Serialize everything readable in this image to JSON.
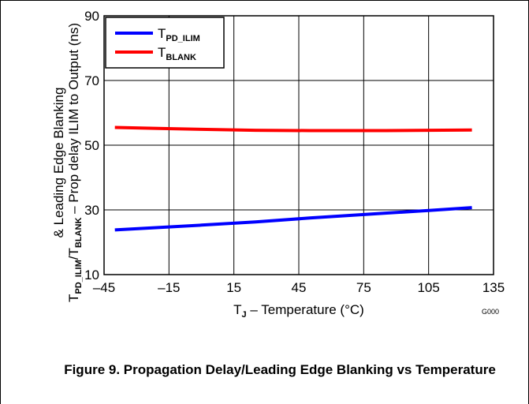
{
  "chart_data": {
    "type": "line",
    "xlabel": {
      "main": "T",
      "sub": "J",
      "rest": " – Temperature (°C)"
    },
    "ylabel": {
      "line1": "& Leading Edge Blanking",
      "line2_parts": [
        {
          "text": "T",
          "sub": "PD_ILIM"
        },
        {
          "text": "/T",
          "sub": "BLANK"
        },
        {
          "text": " – Prop delay ILIM to Output (ns)",
          "sub": ""
        }
      ]
    },
    "x_ticks": [
      "–45",
      "–15",
      "15",
      "45",
      "75",
      "105",
      "135"
    ],
    "y_ticks": [
      "10",
      "30",
      "50",
      "70",
      "90"
    ],
    "xlim": [
      -45,
      135
    ],
    "ylim": [
      10,
      90
    ],
    "grid": true,
    "legend_position": "top-left",
    "series": [
      {
        "name": "T",
        "name_sub": "PD_ILIM",
        "color": "#0000ff",
        "x": [
          -40,
          0,
          25,
          50,
          85,
          105,
          125
        ],
        "y": [
          23.8,
          25.3,
          26.3,
          27.5,
          29.0,
          29.8,
          30.7
        ]
      },
      {
        "name": "T",
        "name_sub": "BLANK",
        "color": "#ff0000",
        "x": [
          -40,
          -20,
          0,
          25,
          50,
          85,
          105,
          125
        ],
        "y": [
          55.5,
          55.2,
          54.9,
          54.6,
          54.5,
          54.5,
          54.6,
          54.7
        ]
      }
    ],
    "watermark": "G000",
    "caption": "Figure 9. Propagation Delay/Leading Edge Blanking vs Temperature"
  }
}
